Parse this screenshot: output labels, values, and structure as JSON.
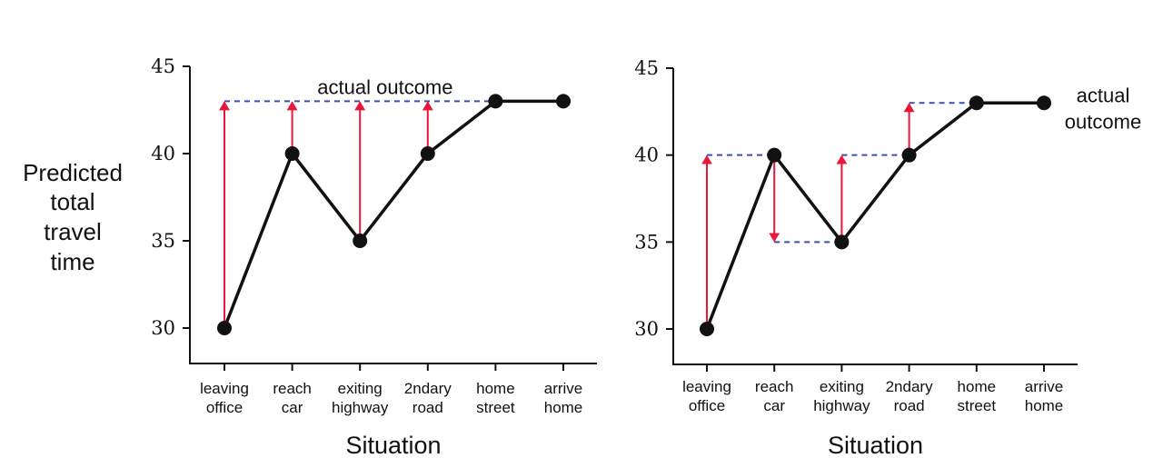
{
  "ylabel": [
    "Predicted",
    "total",
    "travel",
    "time"
  ],
  "chart_data": [
    {
      "type": "line",
      "categories": [
        [
          "leaving",
          "office"
        ],
        [
          "reach",
          "car"
        ],
        [
          "exiting",
          "highway"
        ],
        [
          "2ndary",
          "road"
        ],
        [
          "home",
          "street"
        ],
        [
          "arrive",
          "home"
        ]
      ],
      "series": [
        {
          "values": [
            30,
            40,
            35,
            40,
            43,
            43
          ]
        }
      ],
      "xlabel": "Situation",
      "ylim": [
        28,
        45
      ],
      "yticks": [
        30,
        35,
        40,
        45
      ],
      "reference_line": {
        "value": 43,
        "color": "#3a4fb0",
        "style": "dashed"
      },
      "annotations": [
        {
          "text": [
            "actual outcome"
          ],
          "placement": "above-reference-line-center"
        }
      ],
      "arrows": [
        {
          "category_index": 0,
          "from": 30,
          "to": 43
        },
        {
          "category_index": 1,
          "from": 40,
          "to": 43
        },
        {
          "category_index": 2,
          "from": 35,
          "to": 43
        },
        {
          "category_index": 3,
          "from": 40,
          "to": 43
        }
      ],
      "guides": [],
      "arrow_color": "#e8173a",
      "line_color": "#111111",
      "grid": false
    },
    {
      "type": "line",
      "categories": [
        [
          "leaving",
          "office"
        ],
        [
          "reach",
          "car"
        ],
        [
          "exiting",
          "highway"
        ],
        [
          "2ndary",
          "road"
        ],
        [
          "home",
          "street"
        ],
        [
          "arrive",
          "home"
        ]
      ],
      "series": [
        {
          "values": [
            30,
            40,
            35,
            40,
            43,
            43
          ]
        }
      ],
      "xlabel": "Situation",
      "ylim": [
        28,
        45
      ],
      "yticks": [
        30,
        35,
        40,
        45
      ],
      "reference_line": {
        "value": 43,
        "color": "#3a4fb0",
        "style": "dashed",
        "from_index": 3,
        "to_index": 5
      },
      "annotations": [
        {
          "text": [
            "actual",
            "outcome"
          ],
          "placement": "right-of-last-point"
        }
      ],
      "arrows": [
        {
          "category_index": 0,
          "from": 30,
          "to": 40
        },
        {
          "category_index": 1,
          "from": 40,
          "to": 35
        },
        {
          "category_index": 2,
          "from": 35,
          "to": 40
        },
        {
          "category_index": 3,
          "from": 40,
          "to": 43
        }
      ],
      "guides": [
        {
          "value": 40,
          "from_index": 0,
          "to_index": 1
        },
        {
          "value": 35,
          "from_index": 1,
          "to_index": 2
        },
        {
          "value": 40,
          "from_index": 2,
          "to_index": 3
        }
      ],
      "arrow_color": "#e8173a",
      "line_color": "#111111",
      "grid": false
    }
  ]
}
